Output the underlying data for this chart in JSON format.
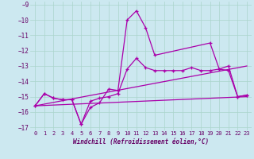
{
  "xlabel": "Windchill (Refroidissement éolien,°C)",
  "background_color": "#cce8f0",
  "line_color": "#aa00aa",
  "xlim": [
    -0.5,
    23.5
  ],
  "ylim": [
    -17.2,
    -8.8
  ],
  "yticks": [
    -17,
    -16,
    -15,
    -14,
    -13,
    -12,
    -11,
    -10,
    -9
  ],
  "xticks": [
    0,
    1,
    2,
    3,
    4,
    5,
    6,
    7,
    8,
    9,
    10,
    11,
    12,
    13,
    14,
    15,
    16,
    17,
    18,
    19,
    20,
    21,
    22,
    23
  ],
  "line1_x": [
    0,
    1,
    2,
    3,
    4,
    5,
    6,
    7,
    8,
    9,
    10,
    11,
    12,
    13,
    19,
    20,
    21,
    22,
    23
  ],
  "line1_y": [
    -15.6,
    -14.8,
    -15.1,
    -15.2,
    -15.2,
    -16.8,
    -15.7,
    -15.4,
    -14.5,
    -14.6,
    -10.0,
    -9.4,
    -10.5,
    -12.3,
    -11.5,
    -13.2,
    -13.0,
    -15.0,
    -14.9
  ],
  "line2_x": [
    0,
    23
  ],
  "line2_y": [
    -15.6,
    -13.0
  ],
  "line3_x": [
    0,
    23
  ],
  "line3_y": [
    -15.6,
    -15.0
  ],
  "line4_x": [
    0,
    1,
    2,
    3,
    4,
    5,
    6,
    7,
    8,
    9,
    10,
    11,
    12,
    13,
    14,
    15,
    16,
    17,
    18,
    19,
    20,
    21,
    22,
    23
  ],
  "line4_y": [
    -15.6,
    -14.8,
    -15.1,
    -15.2,
    -15.2,
    -16.8,
    -15.3,
    -15.1,
    -15.0,
    -14.8,
    -13.2,
    -12.5,
    -13.1,
    -13.3,
    -13.3,
    -13.3,
    -13.3,
    -13.1,
    -13.3,
    -13.3,
    -13.2,
    -13.3,
    -15.0,
    -14.9
  ]
}
